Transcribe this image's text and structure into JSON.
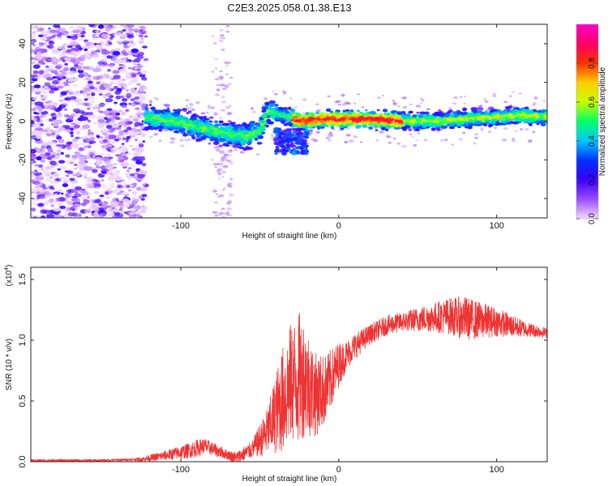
{
  "title": "C2E3.2025.058.01.38.E13",
  "chart_data": [
    {
      "type": "heatmap",
      "description_kind": "spectrogram",
      "xlabel": "Height of straight line (km)",
      "ylabel": "Frequency (Hz)",
      "xlim": [
        -195,
        132
      ],
      "ylim": [
        -50,
        50
      ],
      "xticks": [
        -100,
        0,
        100
      ],
      "xtick_labels": [
        "-100",
        "0",
        "100"
      ],
      "yticks": [
        -40,
        -20,
        0,
        20,
        40
      ],
      "ytick_labels": [
        "-40",
        "-20",
        "0",
        "20",
        "40"
      ],
      "colorbar": {
        "label": "Normalized spectral amplitude",
        "range": [
          0.0,
          1.0
        ],
        "ticks": [
          0.0,
          0.2,
          0.4,
          0.6,
          0.8
        ],
        "tick_labels": [
          "0.0",
          "0.2",
          "0.4",
          "0.6",
          "0.8"
        ],
        "colors": [
          "#f2d9ff",
          "#9a4dff",
          "#3a00ff",
          "#0030ff",
          "#00c8ff",
          "#00ff66",
          "#c8ff00",
          "#ffcc00",
          "#ff3300",
          "#ff0066",
          "#ff00cc"
        ]
      },
      "main_trace": {
        "x": [
          -120,
          -105,
          -90,
          -75,
          -60,
          -50,
          -45,
          -35,
          -25,
          -10,
          0,
          20,
          40,
          60,
          80,
          100,
          115,
          130
        ],
        "y": [
          2,
          0,
          -3,
          -6,
          -8,
          -5,
          5,
          3,
          0,
          1,
          1,
          1,
          0,
          0,
          1,
          2,
          3,
          2
        ]
      },
      "noise_region_x": [
        -195,
        -122
      ],
      "faint_stripe_x": [
        -80,
        -68
      ]
    },
    {
      "type": "line",
      "xlabel": "Height of straight line (km)",
      "ylabel": "SNR (10 * v/v)",
      "multiplier_label": "(x10",
      "multiplier_exp": "4",
      "multiplier_close": ")",
      "xlim": [
        -195,
        132
      ],
      "ylim": [
        0,
        1.6
      ],
      "xticks": [
        -100,
        0,
        100
      ],
      "xtick_labels": [
        "-100",
        "0",
        "100"
      ],
      "yticks": [
        0.0,
        0.5,
        1.0,
        1.5
      ],
      "ytick_labels": [
        "0.0",
        "0.5",
        "1.0",
        "1.5"
      ],
      "color": "#ee3333",
      "envelope": {
        "x": [
          -195,
          -150,
          -125,
          -110,
          -95,
          -85,
          -75,
          -65,
          -55,
          -45,
          -38,
          -30,
          -22,
          -15,
          -8,
          0,
          10,
          20,
          30,
          40,
          55,
          70,
          85,
          100,
          115,
          132
        ],
        "y": [
          0.01,
          0.01,
          0.02,
          0.05,
          0.09,
          0.13,
          0.08,
          0.03,
          0.1,
          0.25,
          0.45,
          0.65,
          0.7,
          0.55,
          0.6,
          0.8,
          0.95,
          1.05,
          1.12,
          1.15,
          1.18,
          1.2,
          1.17,
          1.15,
          1.1,
          1.06
        ]
      },
      "noise_amplitude": {
        "x": [
          -195,
          -130,
          -110,
          -90,
          -70,
          -55,
          -45,
          -35,
          -25,
          -15,
          -5,
          5,
          20,
          40,
          60,
          80,
          100,
          120,
          132
        ],
        "y": [
          0.01,
          0.01,
          0.04,
          0.07,
          0.04,
          0.07,
          0.2,
          0.45,
          0.55,
          0.35,
          0.25,
          0.12,
          0.08,
          0.08,
          0.12,
          0.18,
          0.12,
          0.06,
          0.04
        ]
      }
    }
  ]
}
